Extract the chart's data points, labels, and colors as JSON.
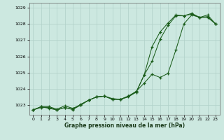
{
  "xlabel": "Graphe pression niveau de la mer (hPa)",
  "background_color": "#cce8e0",
  "grid_color": "#b0d0c8",
  "line_color": "#1a5c1a",
  "x_ticks": [
    0,
    1,
    2,
    3,
    4,
    5,
    6,
    7,
    8,
    9,
    10,
    11,
    12,
    13,
    14,
    15,
    16,
    17,
    18,
    19,
    20,
    21,
    22,
    23
  ],
  "ylim": [
    1022.4,
    1029.3
  ],
  "y_ticks": [
    1023,
    1024,
    1025,
    1026,
    1027,
    1028,
    1029
  ],
  "line_smooth1": [
    1022.7,
    1022.85,
    1022.85,
    1022.7,
    1022.85,
    1022.75,
    1023.05,
    1023.3,
    1023.5,
    1023.55,
    1023.35,
    1023.35,
    1023.5,
    1023.8,
    1024.85,
    1025.7,
    1027.05,
    1027.9,
    1028.5,
    1028.5,
    1028.6,
    1028.4,
    1028.4,
    1028.0
  ],
  "line_smooth2": [
    1022.7,
    1022.9,
    1022.9,
    1022.75,
    1022.95,
    1022.8,
    1023.0,
    1023.3,
    1023.5,
    1023.55,
    1023.35,
    1023.35,
    1023.55,
    1023.8,
    1024.85,
    1026.6,
    1027.5,
    1028.05,
    1028.55,
    1028.5,
    1028.65,
    1028.4,
    1028.45,
    1028.0
  ],
  "line_zigzag": [
    1022.7,
    1022.9,
    1022.8,
    1022.7,
    1022.85,
    1022.72,
    1023.0,
    1023.3,
    1023.5,
    1023.55,
    1023.4,
    1023.35,
    1023.55,
    1023.85,
    1024.35,
    1024.9,
    1024.7,
    1024.95,
    1026.4,
    1028.0,
    1028.55,
    1028.4,
    1028.55,
    1028.0
  ],
  "figsize": [
    3.2,
    2.0
  ],
  "dpi": 100
}
